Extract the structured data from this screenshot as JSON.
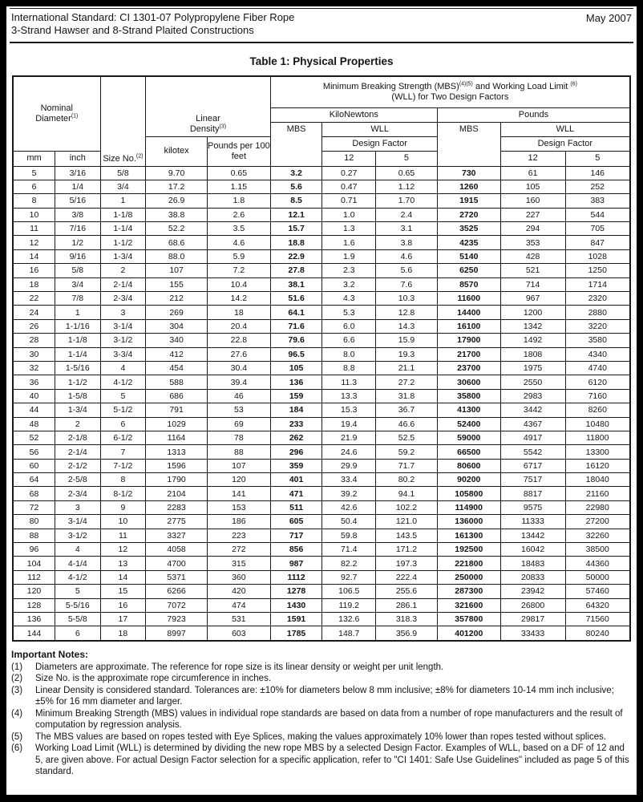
{
  "doc": {
    "title_line1": "International Standard: CI 1301-07 Polypropylene Fiber Rope",
    "title_line2": "3-Strand Hawser and 8-Strand Plaited Constructions",
    "date": "May 2007",
    "table_title": "Table 1: Physical Properties"
  },
  "header": {
    "nominal_diameter": "Nominal Diameter",
    "nominal_diameter_sup": "(1)",
    "mm": "mm",
    "inch": "inch",
    "size_no": "Size No.",
    "size_no_sup": "(2)",
    "linear_density": "Linear Density",
    "linear_density_sup": "(3)",
    "kilotex": "kilotex",
    "pounds_per_100_feet": "Pounds per 100 feet",
    "mbs_wll_title_1": "Minimum Breaking Strength (MBS)",
    "mbs_wll_sup_1": "(4)(5)",
    "mbs_wll_title_2": " and Working Load Limit ",
    "mbs_wll_sup_2": "(6)",
    "mbs_wll_title_line2": "(WLL) for Two Design Factors",
    "kilonewtons": "KiloNewtons",
    "pounds": "Pounds",
    "mbs": "MBS",
    "wll": "WLL",
    "design_factor": "Design Factor",
    "df_12": "12",
    "df_5": "5"
  },
  "table": {
    "col_keys": [
      "mm",
      "inch",
      "size-no",
      "kilotex",
      "lb-per-100ft",
      "mbs-kn",
      "wll-df12-kn",
      "wll-df5-kn",
      "mbs-lb",
      "wll-df12-lb",
      "wll-df5-lb"
    ],
    "bold_cols": [
      5,
      8
    ],
    "rows": [
      [
        "5",
        "3/16",
        "5/8",
        "9.70",
        "0.65",
        "3.2",
        "0.27",
        "0.65",
        "730",
        "61",
        "146"
      ],
      [
        "6",
        "1/4",
        "3/4",
        "17.2",
        "1.15",
        "5.6",
        "0.47",
        "1.12",
        "1260",
        "105",
        "252"
      ],
      [
        "8",
        "5/16",
        "1",
        "26.9",
        "1.8",
        "8.5",
        "0.71",
        "1.70",
        "1915",
        "160",
        "383"
      ],
      [
        "10",
        "3/8",
        "1-1/8",
        "38.8",
        "2.6",
        "12.1",
        "1.0",
        "2.4",
        "2720",
        "227",
        "544"
      ],
      [
        "11",
        "7/16",
        "1-1/4",
        "52.2",
        "3.5",
        "15.7",
        "1.3",
        "3.1",
        "3525",
        "294",
        "705"
      ],
      [
        "12",
        "1/2",
        "1-1/2",
        "68.6",
        "4.6",
        "18.8",
        "1.6",
        "3.8",
        "4235",
        "353",
        "847"
      ],
      [
        "14",
        "9/16",
        "1-3/4",
        "88.0",
        "5.9",
        "22.9",
        "1.9",
        "4.6",
        "5140",
        "428",
        "1028"
      ],
      [
        "16",
        "5/8",
        "2",
        "107",
        "7.2",
        "27.8",
        "2.3",
        "5.6",
        "6250",
        "521",
        "1250"
      ],
      [
        "18",
        "3/4",
        "2-1/4",
        "155",
        "10.4",
        "38.1",
        "3.2",
        "7.6",
        "8570",
        "714",
        "1714"
      ],
      [
        "22",
        "7/8",
        "2-3/4",
        "212",
        "14.2",
        "51.6",
        "4.3",
        "10.3",
        "11600",
        "967",
        "2320"
      ],
      [
        "24",
        "1",
        "3",
        "269",
        "18",
        "64.1",
        "5.3",
        "12.8",
        "14400",
        "1200",
        "2880"
      ],
      [
        "26",
        "1-1/16",
        "3-1/4",
        "304",
        "20.4",
        "71.6",
        "6.0",
        "14.3",
        "16100",
        "1342",
        "3220"
      ],
      [
        "28",
        "1-1/8",
        "3-1/2",
        "340",
        "22.8",
        "79.6",
        "6.6",
        "15.9",
        "17900",
        "1492",
        "3580"
      ],
      [
        "30",
        "1-1/4",
        "3-3/4",
        "412",
        "27.6",
        "96.5",
        "8.0",
        "19.3",
        "21700",
        "1808",
        "4340"
      ],
      [
        "32",
        "1-5/16",
        "4",
        "454",
        "30.4",
        "105",
        "8.8",
        "21.1",
        "23700",
        "1975",
        "4740"
      ],
      [
        "36",
        "1-1/2",
        "4-1/2",
        "588",
        "39.4",
        "136",
        "11.3",
        "27.2",
        "30600",
        "2550",
        "6120"
      ],
      [
        "40",
        "1-5/8",
        "5",
        "686",
        "46",
        "159",
        "13.3",
        "31.8",
        "35800",
        "2983",
        "7160"
      ],
      [
        "44",
        "1-3/4",
        "5-1/2",
        "791",
        "53",
        "184",
        "15.3",
        "36.7",
        "41300",
        "3442",
        "8260"
      ],
      [
        "48",
        "2",
        "6",
        "1029",
        "69",
        "233",
        "19.4",
        "46.6",
        "52400",
        "4367",
        "10480"
      ],
      [
        "52",
        "2-1/8",
        "6-1/2",
        "1164",
        "78",
        "262",
        "21.9",
        "52.5",
        "59000",
        "4917",
        "11800"
      ],
      [
        "56",
        "2-1/4",
        "7",
        "1313",
        "88",
        "296",
        "24.6",
        "59.2",
        "66500",
        "5542",
        "13300"
      ],
      [
        "60",
        "2-1/2",
        "7-1/2",
        "1596",
        "107",
        "359",
        "29.9",
        "71.7",
        "80600",
        "6717",
        "16120"
      ],
      [
        "64",
        "2-5/8",
        "8",
        "1790",
        "120",
        "401",
        "33.4",
        "80.2",
        "90200",
        "7517",
        "18040"
      ],
      [
        "68",
        "2-3/4",
        "8-1/2",
        "2104",
        "141",
        "471",
        "39.2",
        "94.1",
        "105800",
        "8817",
        "21160"
      ],
      [
        "72",
        "3",
        "9",
        "2283",
        "153",
        "511",
        "42.6",
        "102.2",
        "114900",
        "9575",
        "22980"
      ],
      [
        "80",
        "3-1/4",
        "10",
        "2775",
        "186",
        "605",
        "50.4",
        "121.0",
        "136000",
        "11333",
        "27200"
      ],
      [
        "88",
        "3-1/2",
        "11",
        "3327",
        "223",
        "717",
        "59.8",
        "143.5",
        "161300",
        "13442",
        "32260"
      ],
      [
        "96",
        "4",
        "12",
        "4058",
        "272",
        "856",
        "71.4",
        "171.2",
        "192500",
        "16042",
        "38500"
      ],
      [
        "104",
        "4-1/4",
        "13",
        "4700",
        "315",
        "987",
        "82.2",
        "197.3",
        "221800",
        "18483",
        "44360"
      ],
      [
        "112",
        "4-1/2",
        "14",
        "5371",
        "360",
        "1112",
        "92.7",
        "222.4",
        "250000",
        "20833",
        "50000"
      ],
      [
        "120",
        "5",
        "15",
        "6266",
        "420",
        "1278",
        "106.5",
        "255.6",
        "287300",
        "23942",
        "57460"
      ],
      [
        "128",
        "5-5/16",
        "16",
        "7072",
        "474",
        "1430",
        "119.2",
        "286.1",
        "321600",
        "26800",
        "64320"
      ],
      [
        "136",
        "5-5/8",
        "17",
        "7923",
        "531",
        "1591",
        "132.6",
        "318.3",
        "357800",
        "29817",
        "71560"
      ],
      [
        "144",
        "6",
        "18",
        "8997",
        "603",
        "1785",
        "148.7",
        "356.9",
        "401200",
        "33433",
        "80240"
      ]
    ]
  },
  "notes_section": {
    "heading": "Important Notes:",
    "notes": [
      {
        "num": "(1)",
        "text": "Diameters are approximate.  The reference for rope size is its linear density or weight per unit length."
      },
      {
        "num": "(2)",
        "text": "Size No. is the approximate rope circumference in inches."
      },
      {
        "num": "(3)",
        "text": "Linear Density is considered standard.  Tolerances are: ±10% for diameters below 8 mm inclusive; ±8% for diameters 10-14 mm inch inclusive; ±5% for 16 mm diameter and larger."
      },
      {
        "num": "(4)",
        "text": "Minimum Breaking Strength (MBS) values in individual rope standards are based on data from a number of rope manufacturers and the result of computation by regression analysis."
      },
      {
        "num": "(5)",
        "text": "The MBS values are based on ropes tested with Eye Splices, making the values approximately 10% lower than ropes tested without splices."
      },
      {
        "num": "(6)",
        "text": "Working Load Limit (WLL) is determined by dividing the new rope MBS by a selected Design Factor.  Examples of WLL, based on a DF of 12 and 5, are given above.  For actual Design Factor selection for a specific application, refer to \"CI 1401: Safe Use Guidelines\" included as page 5 of this standard."
      }
    ]
  }
}
